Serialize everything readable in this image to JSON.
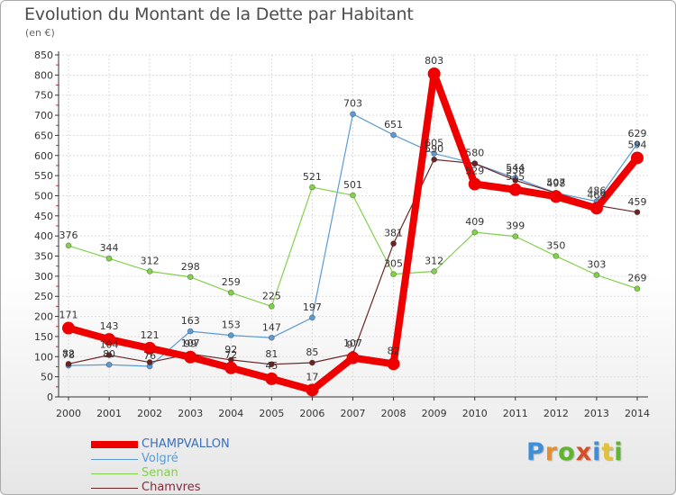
{
  "header": {
    "title": "Evolution du Montant de la Dette par Habitant",
    "unit": "(en €)"
  },
  "logo": {
    "letters": [
      "P",
      "r",
      "o",
      "x",
      "i",
      "t",
      "i"
    ],
    "colors": [
      "#3c8fd8",
      "#e88e2a",
      "#5cb82a",
      "#d64d2a",
      "#3c8fd8",
      "#e3c23a",
      "#5cb82a"
    ]
  },
  "chart_data": {
    "type": "line",
    "x": [
      "2000",
      "2001",
      "2002",
      "2003",
      "2004",
      "2005",
      "2006",
      "2007",
      "2008",
      "2009",
      "2010",
      "2011",
      "2012",
      "2013",
      "2014"
    ],
    "ylim": [
      0,
      850
    ],
    "yticks": [
      "0",
      "50",
      "100",
      "150",
      "200",
      "250",
      "300",
      "350",
      "400",
      "450",
      "500",
      "550",
      "600",
      "650",
      "700",
      "750",
      "800",
      "850"
    ],
    "grid": true,
    "legend_position": "bottom-left",
    "series": [
      {
        "name": "Volgré",
        "color": "#5b9bd5",
        "values": [
          78,
          80,
          76,
          163,
          153,
          147,
          197,
          703,
          651,
          605,
          580,
          544,
          507,
          486,
          629
        ],
        "labels": [
          "78",
          "80",
          "76",
          "163",
          "153",
          "147",
          "197",
          "703",
          "651",
          "605",
          "580",
          "544",
          "507",
          "486",
          "629"
        ]
      },
      {
        "name": "Senan",
        "color": "#82d14a",
        "values": [
          376,
          344,
          312,
          298,
          259,
          225,
          521,
          501,
          305,
          312,
          409,
          399,
          350,
          303,
          269
        ],
        "labels": [
          "376",
          "344",
          "312",
          "298",
          "259",
          "225",
          "521",
          "501",
          "305",
          "312",
          "409",
          "399",
          "350",
          "303",
          "269"
        ]
      },
      {
        "name": "Chamvres",
        "color": "#6b2424",
        "values": [
          82,
          104,
          86,
          107,
          92,
          81,
          85,
          107,
          381,
          590,
          580,
          538,
          507,
          476,
          459
        ],
        "labels": [
          "82",
          "104",
          "",
          "107",
          "92",
          "81",
          "85",
          "107",
          "381",
          "590",
          "",
          "538",
          "",
          "",
          "459"
        ]
      },
      {
        "name": "CHAMPVALLON",
        "color": "#ee0000",
        "values": [
          171,
          143,
          121,
          99,
          72,
          45,
          17,
          97,
          82,
          803,
          529,
          515,
          498,
          469,
          594
        ],
        "labels": [
          "171",
          "143",
          "121",
          "99",
          "72",
          "45",
          "17",
          "97",
          "82",
          "803",
          "529",
          "515",
          "498",
          "469",
          "594"
        ]
      }
    ],
    "legend_order": [
      "CHAMPVALLON",
      "Volgré",
      "Senan",
      "Chamvres"
    ]
  }
}
